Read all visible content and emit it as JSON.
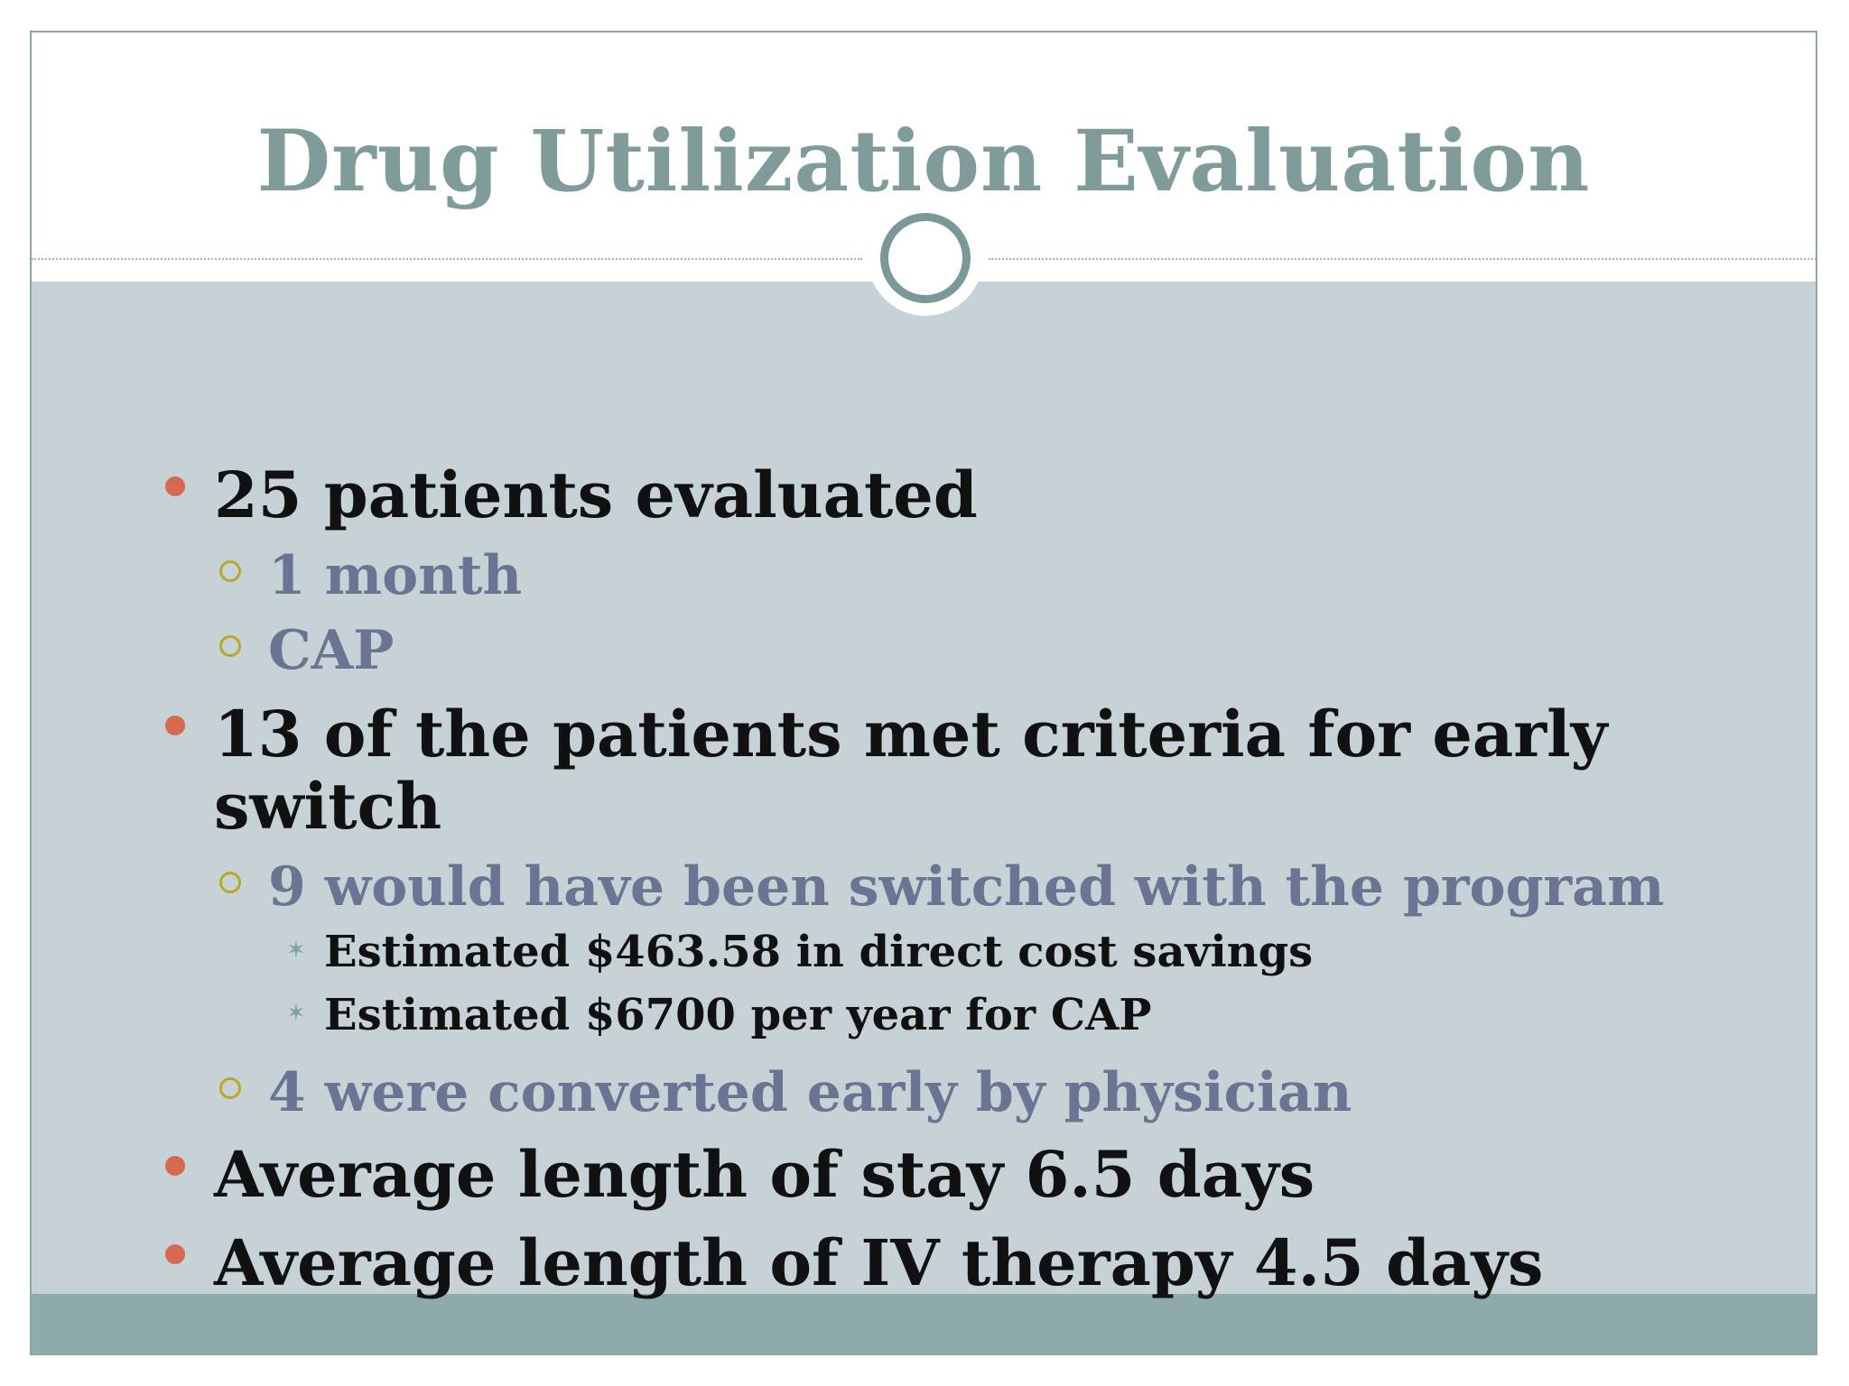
{
  "title": "Drug Utilization Evaluation",
  "colors": {
    "title": "#7f9c9b",
    "panel": "#c6d2d6",
    "footer_band": "#8eaaaa",
    "bullet_level1": "#d6694f",
    "bullet_level2": "#b8a82a",
    "bullet_level3": "#7fa3a3",
    "text_level1": "#111111",
    "text_level2": "#6b7593"
  },
  "bullets": [
    {
      "text": "25 patients evaluated",
      "children": [
        {
          "text": "1 month"
        },
        {
          "text": "CAP"
        }
      ]
    },
    {
      "text_line1": "13 of the patients met criteria for early",
      "text_line2": "switch",
      "children": [
        {
          "text": "9 would have been switched with the program",
          "children": [
            {
              "text": "Estimated $463.58 in direct cost savings"
            },
            {
              "text": "Estimated $6700 per year for CAP"
            }
          ]
        },
        {
          "text": "4 were converted early by physician"
        }
      ]
    },
    {
      "text": "Average length of stay 6.5 days"
    },
    {
      "text": "Average length of IV therapy 4.5 days"
    }
  ]
}
